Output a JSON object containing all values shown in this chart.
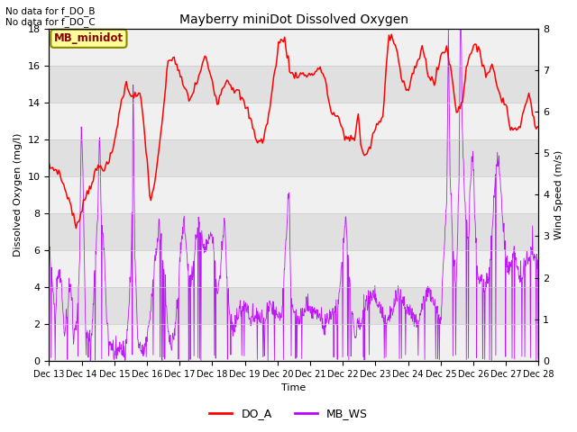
{
  "title": "Mayberry miniDot Dissolved Oxygen",
  "xlabel": "Time",
  "ylabel_left": "Dissolved Oxygen (mg/l)",
  "ylabel_right": "Wind Speed (m/s)",
  "annotation1": "No data for f_DO_B",
  "annotation2": "No data for f_DO_C",
  "legend_box_label": "MB_minidot",
  "ylim_left": [
    0,
    18
  ],
  "ylim_right": [
    0.0,
    8.0
  ],
  "yticks_left": [
    0,
    2,
    4,
    6,
    8,
    10,
    12,
    14,
    16,
    18
  ],
  "yticks_right": [
    0.0,
    1.0,
    2.0,
    3.0,
    4.0,
    5.0,
    6.0,
    7.0,
    8.0
  ],
  "xtick_labels": [
    "Dec 13",
    "Dec 14",
    "Dec 15",
    "Dec 16",
    "Dec 17",
    "Dec 18",
    "Dec 19",
    "Dec 20",
    "Dec 21",
    "Dec 22",
    "Dec 23",
    "Dec 24",
    "Dec 25",
    "Dec 26",
    "Dec 27",
    "Dec 28"
  ],
  "do_color": "#ff0000",
  "ws_color": "#bb00ff",
  "bg_color": "#e0e0e0",
  "legend_do_label": "DO_A",
  "legend_ws_label": "MB_WS",
  "n_do_points": 400,
  "n_ws_points": 1200,
  "n_days": 16
}
